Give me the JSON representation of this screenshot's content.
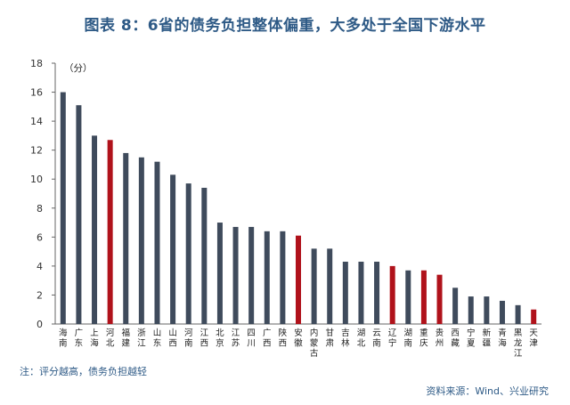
{
  "title": "图表 8：6省的债务负担整体偏重，大多处于全国下游水平",
  "note": "注：评分越高，债务负担越轻",
  "source": "资料来源：Wind、兴业研究",
  "colors": {
    "default_bar": "#3f4b5c",
    "highlight_bar": "#b0121b",
    "title": "#2e5a86"
  },
  "chart_data": {
    "type": "bar",
    "unit_label": "（分）",
    "ylim": [
      0,
      18
    ],
    "yticks": [
      0,
      2,
      4,
      6,
      8,
      10,
      12,
      14,
      16,
      18
    ],
    "grid": false,
    "categories": [
      "海南",
      "广东",
      "上海",
      "河北",
      "福建",
      "浙江",
      "山东",
      "山西",
      "河南",
      "江西",
      "北京",
      "江苏",
      "四川",
      "广西",
      "陕西",
      "安徽",
      "内蒙古",
      "甘肃",
      "吉林",
      "湖北",
      "云南",
      "辽宁",
      "湖南",
      "重庆",
      "贵州",
      "西藏",
      "宁夏",
      "新疆",
      "青海",
      "黑龙江",
      "天津"
    ],
    "values": [
      16.0,
      15.1,
      13.0,
      12.7,
      11.8,
      11.5,
      11.2,
      10.3,
      9.7,
      9.4,
      7.0,
      6.7,
      6.7,
      6.4,
      6.4,
      6.1,
      5.2,
      5.2,
      4.3,
      4.3,
      4.3,
      4.0,
      3.7,
      3.7,
      3.4,
      2.5,
      1.9,
      1.9,
      1.6,
      1.3,
      1.0
    ],
    "highlighted": [
      "河北",
      "安徽",
      "辽宁",
      "重庆",
      "贵州",
      "天津"
    ]
  }
}
